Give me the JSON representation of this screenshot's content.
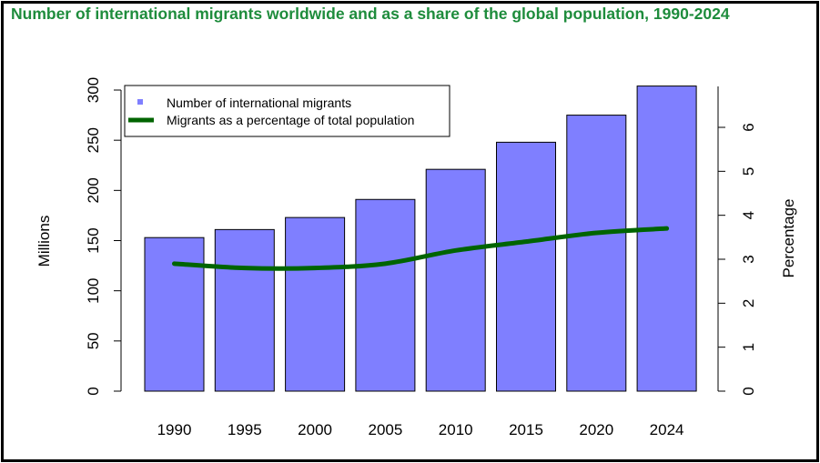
{
  "chart_data": {
    "type": "bar+line",
    "title": "Number of international migrants worldwide and as a share of the global population, 1990-2024",
    "categories": [
      "1990",
      "1995",
      "2000",
      "2005",
      "2010",
      "2015",
      "2020",
      "2024"
    ],
    "series": [
      {
        "name": "Number of international migrants",
        "type": "bar",
        "axis": "left",
        "values": [
          153,
          161,
          173,
          191,
          221,
          248,
          275,
          304
        ]
      },
      {
        "name": "Migrants as a percentage of total population",
        "type": "line",
        "axis": "right",
        "values": [
          2.9,
          2.8,
          2.8,
          2.9,
          3.2,
          3.4,
          3.6,
          3.7
        ]
      }
    ],
    "ylabel": "Millions",
    "y2label": "Percentage",
    "ylim": [
      0,
      300
    ],
    "y2lim": [
      0,
      6
    ],
    "yticks": [
      "0",
      "50",
      "100",
      "150",
      "200",
      "250",
      "300"
    ],
    "y2ticks": [
      "0",
      "1",
      "2",
      "3",
      "4",
      "5",
      "6"
    ],
    "legend_placement": "top-left",
    "grid": false,
    "colors": {
      "title": "#1e8c3c",
      "bar": "#7f7fff",
      "line": "#006400"
    }
  }
}
